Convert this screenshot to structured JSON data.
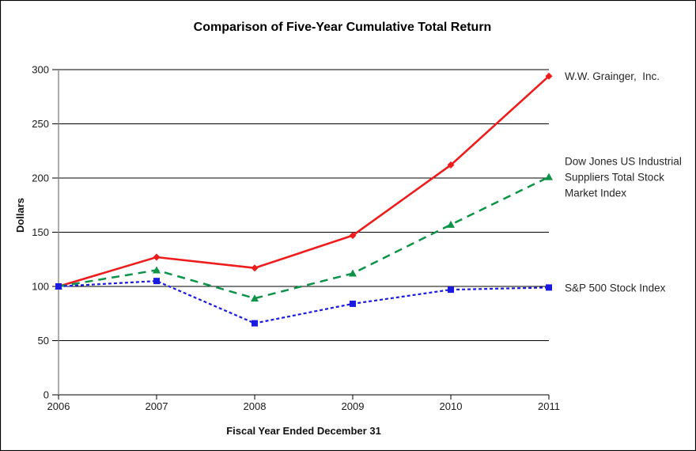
{
  "window": {
    "background_color": "#FFFFFF",
    "border_color": "#000000"
  },
  "chart_data": {
    "type": "line",
    "title": "Comparison of Five-Year Cumulative Total Return",
    "xlabel": "Fiscal Year Ended December 31",
    "ylabel": "Dollars",
    "x_categories": [
      "2006",
      "2007",
      "2008",
      "2009",
      "2010",
      "2011"
    ],
    "y_ticks": [
      0,
      50,
      100,
      150,
      200,
      250,
      300
    ],
    "ylim": [
      0,
      300
    ],
    "grid": "horizontal-on",
    "legend_position": "right-of-last-point",
    "axis_line_color": "#808080",
    "grid_line_color": "#000000",
    "tick_color": "#000000",
    "series": [
      {
        "name": "W.W. Grainger, Inc.",
        "label_lines": [
          "W.W. Grainger,  Inc."
        ],
        "values": [
          100,
          127,
          117,
          147,
          212,
          294
        ],
        "color": "#EE1C1C",
        "marker": "diamond",
        "line_style": "solid"
      },
      {
        "name": "Dow Jones US Industrial Suppliers Total Stock Market Index",
        "label_lines": [
          "Dow Jones US Industrial",
          "Suppliers Total Stock",
          "Market Index"
        ],
        "values": [
          100,
          115,
          89,
          112,
          157,
          201
        ],
        "color": "#0C9347",
        "marker": "triangle",
        "line_style": "long-dash"
      },
      {
        "name": "S&P 500 Stock Index",
        "label_lines": [
          "S&P 500 Stock Index"
        ],
        "values": [
          100,
          105,
          66,
          84,
          97,
          99
        ],
        "color": "#1A1AE0",
        "marker": "square",
        "line_style": "short-dash"
      }
    ]
  }
}
